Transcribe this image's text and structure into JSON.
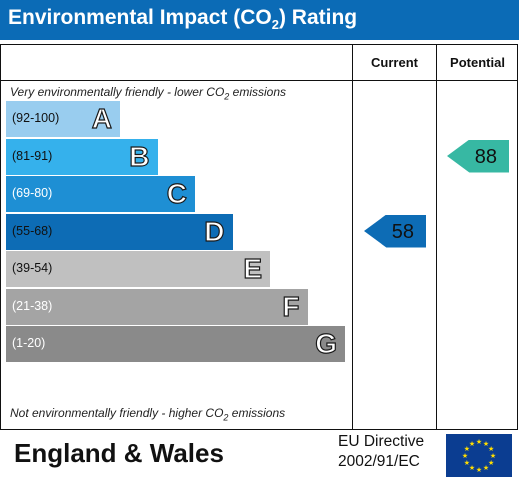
{
  "header": {
    "title_main": "Environmental Impact (CO",
    "title_sub": "2",
    "title_end": ") Rating"
  },
  "columns": {
    "current": "Current",
    "potential": "Potential"
  },
  "notes": {
    "top_a": "Very environmentally friendly - lower CO",
    "top_sub": "2",
    "top_b": " emissions",
    "bottom_a": "Not environmentally friendly - higher CO",
    "bottom_sub": "2",
    "bottom_b": " emissions"
  },
  "chart_data": {
    "type": "bar",
    "title": "Environmental Impact (CO2) Rating",
    "bands": [
      {
        "range": "(92-100)",
        "letter": "A",
        "color": "#99cdef",
        "range_color": "#111"
      },
      {
        "range": "(81-91)",
        "letter": "B",
        "color": "#35b1ec",
        "range_color": "#111"
      },
      {
        "range": "(69-80)",
        "letter": "C",
        "color": "#1e8fd4",
        "range_color": "#fff"
      },
      {
        "range": "(55-68)",
        "letter": "D",
        "color": "#0d6cb5",
        "range_color": "#111"
      },
      {
        "range": "(39-54)",
        "letter": "E",
        "color": "#c0c0c0",
        "range_color": "#111"
      },
      {
        "range": "(21-38)",
        "letter": "F",
        "color": "#a4a4a4",
        "range_color": "#fff"
      },
      {
        "range": "(1-20)",
        "letter": "G",
        "color": "#8a8a8a",
        "range_color": "#fff"
      }
    ],
    "current": {
      "value": 58,
      "band": "D",
      "color": "#0d6cb5"
    },
    "potential": {
      "value": 88,
      "band": "B",
      "color": "#37b8a3"
    }
  },
  "footer": {
    "region": "England & Wales",
    "directive_line1": "EU Directive",
    "directive_line2": "2002/91/EC"
  },
  "flag": {
    "star_color": "#ffdd00",
    "stars": 12
  }
}
